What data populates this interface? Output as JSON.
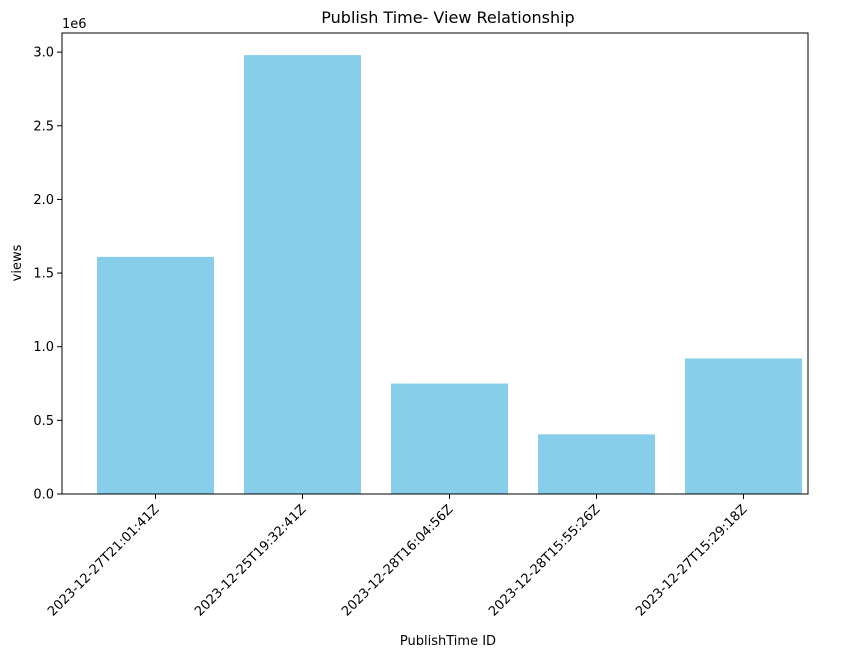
{
  "chart_data": {
    "type": "bar",
    "title": "Publish Time- View Relationship",
    "xlabel": "PublishTime ID",
    "ylabel": "views",
    "y_offset_label": "1e6",
    "categories": [
      "2023-12-27T21:01:41Z",
      "2023-12-25T19:32:41Z",
      "2023-12-28T16:04:56Z",
      "2023-12-28T15:55:26Z",
      "2023-12-27T15:29:18Z"
    ],
    "values": [
      1610000,
      2980000,
      750000,
      405000,
      920000
    ],
    "ylim": [
      0,
      3130000
    ],
    "yticks": [
      0,
      500000,
      1000000,
      1500000,
      2000000,
      2500000,
      3000000
    ],
    "ytick_labels": [
      "0.0",
      "0.5",
      "1.0",
      "1.5",
      "2.0",
      "2.5",
      "3.0"
    ],
    "bar_color": "#87ceeb",
    "grid": false,
    "legend": "none"
  }
}
